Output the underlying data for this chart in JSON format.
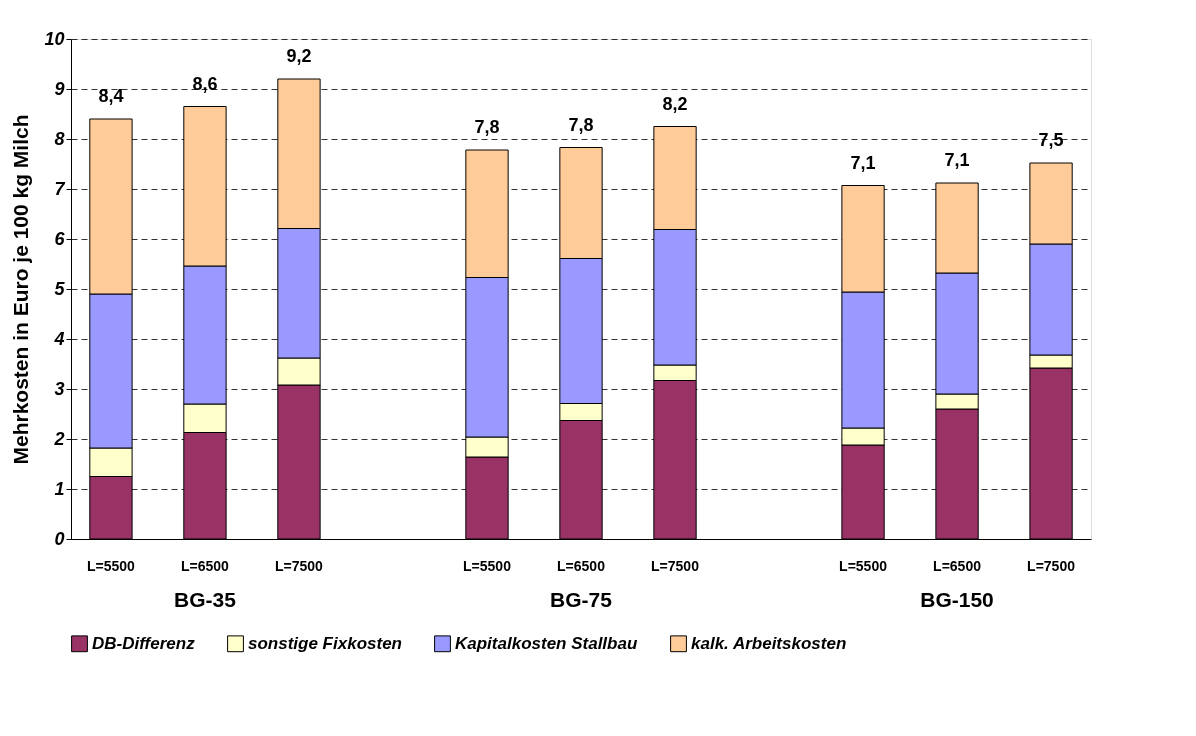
{
  "chart_data": {
    "type": "bar",
    "stacked": true,
    "ylabel": "Mehrkosten in Euro je 100 kg Milch",
    "categories": [
      "L=5500",
      "L=6500",
      "L=7500",
      null,
      "L=5500",
      "L=6500",
      "L=7500",
      null,
      "L=5500",
      "L=6500",
      "L=7500"
    ],
    "series": [
      {
        "name": "DB-Differenz",
        "color": "#993366",
        "values": [
          1.25,
          2.13,
          3.08,
          null,
          1.64,
          2.37,
          3.17,
          null,
          1.88,
          2.6,
          3.42
        ]
      },
      {
        "name": "sonstige Fixkosten",
        "color": "#ffffcc",
        "values": [
          0.57,
          0.57,
          0.54,
          null,
          0.4,
          0.34,
          0.31,
          null,
          0.34,
          0.3,
          0.26
        ]
      },
      {
        "name": "Kapitalkosten Stallbau",
        "color": "#9999ff",
        "values": [
          3.08,
          2.76,
          2.59,
          null,
          3.19,
          2.9,
          2.71,
          null,
          2.72,
          2.42,
          2.22
        ]
      },
      {
        "name": "kalk. Arbeitskosten",
        "color": "#ffcc99",
        "values": [
          3.5,
          3.19,
          2.99,
          null,
          2.55,
          2.22,
          2.06,
          null,
          2.13,
          1.8,
          1.62
        ]
      }
    ],
    "totals": [
      "8,4",
      "8,6",
      "9,2",
      null,
      "7,8",
      "7,8",
      "8,2",
      null,
      "7,1",
      "7,1",
      "7,5"
    ],
    "annotations": [
      "BG-35",
      "BG-75",
      "BG-150"
    ],
    "ylim": [
      0,
      10
    ],
    "yticks": [
      0,
      1,
      2,
      3,
      4,
      5,
      6,
      7,
      8,
      9,
      10
    ],
    "grid": "y",
    "legend": "bottom"
  }
}
